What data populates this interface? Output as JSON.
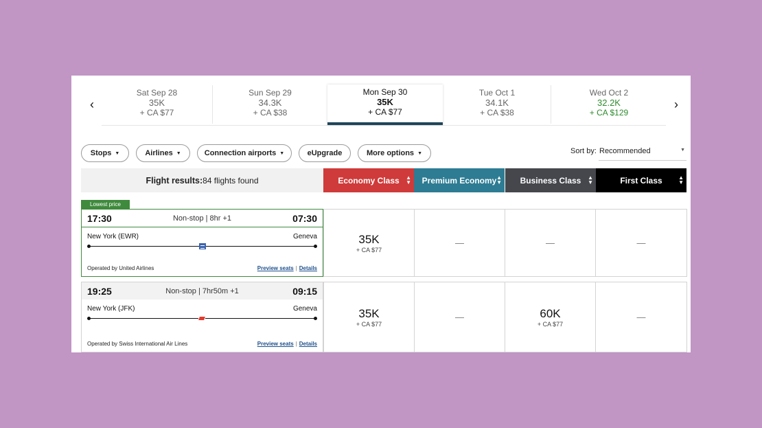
{
  "date_strip": {
    "prev_icon": "chevron-left-icon",
    "next_icon": "chevron-right-icon",
    "dates": [
      {
        "label": "Sat Sep 28",
        "price": "35K",
        "tax": "+ CA $77"
      },
      {
        "label": "Sun Sep 29",
        "price": "34.3K",
        "tax": "+ CA $38"
      },
      {
        "label": "Mon Sep 30",
        "price": "35K",
        "tax": "+ CA $77",
        "selected": true
      },
      {
        "label": "Tue Oct 1",
        "price": "34.1K",
        "tax": "+ CA $38"
      },
      {
        "label": "Wed Oct 2",
        "price": "32.2K",
        "tax": "+ CA $129",
        "lowest": true
      }
    ],
    "selected_color": "#1f4659",
    "lowest_color": "#2e8b2e"
  },
  "filters": {
    "stops": "Stops",
    "airlines": "Airlines",
    "connection_airports": "Connection airports",
    "eupgrade": "eUpgrade",
    "more_options": "More options"
  },
  "sort": {
    "label": "Sort by:",
    "value": "Recommended"
  },
  "results": {
    "label": "Flight results:",
    "count": "84 flights found"
  },
  "cabins": [
    {
      "label": "Economy Class",
      "color": "#cf3b3a"
    },
    {
      "label": "Premium Economy",
      "color": "#2d7c93"
    },
    {
      "label": "Business Class",
      "color": "#45474d"
    },
    {
      "label": "First Class",
      "color": "#000000"
    }
  ],
  "flights": [
    {
      "badge": "Lowest price",
      "depart": "17:30",
      "stops": "Non-stop | 8hr +1",
      "arrive": "07:30",
      "from": "New York (EWR)",
      "to": "Geneva",
      "airline_icon": "united-airlines-logo-icon",
      "operated_by": "Operated by United Airlines",
      "preview_seats": "Preview seats",
      "details": "Details",
      "fares": [
        {
          "miles": "35K",
          "tax": "+ CA $77"
        },
        {
          "dash": "—"
        },
        {
          "dash": "—"
        },
        {
          "dash": "—"
        }
      ]
    },
    {
      "depart": "19:25",
      "stops": "Non-stop | 7hr50m +1",
      "arrive": "09:15",
      "from": "New York (JFK)",
      "to": "Geneva",
      "airline_icon": "swiss-airlines-logo-icon",
      "operated_by": "Operated by Swiss International Air Lines",
      "preview_seats": "Preview seats",
      "details": "Details",
      "fares": [
        {
          "miles": "35K",
          "tax": "+ CA $77"
        },
        {
          "dash": "—"
        },
        {
          "miles": "60K",
          "tax": "+ CA $77"
        },
        {
          "dash": "—"
        }
      ]
    }
  ]
}
